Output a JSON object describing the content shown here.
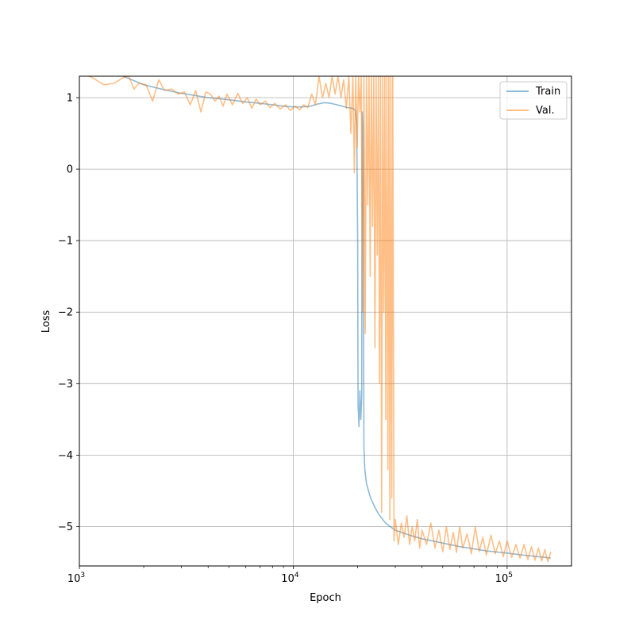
{
  "chart_data": {
    "type": "line",
    "title": "",
    "xlabel": "Epoch",
    "ylabel": "Loss",
    "xscale": "log",
    "xlim": [
      1000,
      200000
    ],
    "ylim": [
      -5.55,
      1.3
    ],
    "grid": true,
    "legend_position": "top-right",
    "x_ticks": [
      {
        "value": 1000,
        "base": "10",
        "exp": "3"
      },
      {
        "value": 10000,
        "base": "10",
        "exp": "4"
      },
      {
        "value": 100000,
        "base": "10",
        "exp": "5"
      }
    ],
    "y_ticks": [
      {
        "value": 1,
        "label": "1"
      },
      {
        "value": 0,
        "label": "0"
      },
      {
        "value": -1,
        "label": "−1"
      },
      {
        "value": -2,
        "label": "−2"
      },
      {
        "value": -3,
        "label": "−3"
      },
      {
        "value": -4,
        "label": "−4"
      },
      {
        "value": -5,
        "label": "−5"
      }
    ],
    "series": [
      {
        "name": "Train",
        "color": "#1f77b4",
        "points": [
          [
            1000,
            1.45
          ],
          [
            1300,
            1.38
          ],
          [
            1600,
            1.3
          ],
          [
            2000,
            1.18
          ],
          [
            2500,
            1.11
          ],
          [
            3000,
            1.06
          ],
          [
            4000,
            1.0
          ],
          [
            5000,
            0.97
          ],
          [
            6000,
            0.94
          ],
          [
            7000,
            0.92
          ],
          [
            8000,
            0.9
          ],
          [
            9000,
            0.88
          ],
          [
            10000,
            0.87
          ],
          [
            11000,
            0.87
          ],
          [
            12000,
            0.88
          ],
          [
            13000,
            0.91
          ],
          [
            14000,
            0.93
          ],
          [
            15000,
            0.92
          ],
          [
            16000,
            0.9
          ],
          [
            17000,
            0.88
          ],
          [
            18000,
            0.86
          ],
          [
            19000,
            0.85
          ],
          [
            19500,
            0.82
          ],
          [
            19800,
            0.65
          ],
          [
            20000,
            -1.0
          ],
          [
            20100,
            -3.3
          ],
          [
            20300,
            -3.6
          ],
          [
            20500,
            -3.1
          ],
          [
            20700,
            -3.5
          ],
          [
            20900,
            -3.2
          ],
          [
            21000,
            0.8
          ],
          [
            21200,
            0.6
          ],
          [
            21400,
            -3.9
          ],
          [
            21600,
            -4.2
          ],
          [
            22000,
            -4.4
          ],
          [
            23000,
            -4.6
          ],
          [
            24000,
            -4.72
          ],
          [
            25000,
            -4.82
          ],
          [
            27000,
            -4.95
          ],
          [
            30000,
            -5.05
          ],
          [
            35000,
            -5.12
          ],
          [
            40000,
            -5.17
          ],
          [
            50000,
            -5.23
          ],
          [
            60000,
            -5.28
          ],
          [
            70000,
            -5.31
          ],
          [
            80000,
            -5.34
          ],
          [
            100000,
            -5.37
          ],
          [
            120000,
            -5.4
          ],
          [
            140000,
            -5.42
          ],
          [
            160000,
            -5.44
          ]
        ]
      },
      {
        "name": "Val.",
        "color": "#ff7f0e",
        "points": [
          [
            1000,
            1.35
          ],
          [
            1150,
            1.28
          ],
          [
            1300,
            1.18
          ],
          [
            1450,
            1.2
          ],
          [
            1600,
            1.28
          ],
          [
            1700,
            1.3
          ],
          [
            1800,
            1.12
          ],
          [
            1900,
            1.2
          ],
          [
            2050,
            1.18
          ],
          [
            2200,
            0.95
          ],
          [
            2350,
            1.25
          ],
          [
            2500,
            1.1
          ],
          [
            2700,
            1.12
          ],
          [
            2900,
            1.05
          ],
          [
            3100,
            1.08
          ],
          [
            3300,
            0.9
          ],
          [
            3500,
            1.1
          ],
          [
            3700,
            0.8
          ],
          [
            3900,
            1.08
          ],
          [
            4100,
            1.05
          ],
          [
            4300,
            0.95
          ],
          [
            4500,
            1.02
          ],
          [
            4700,
            0.88
          ],
          [
            4900,
            1.05
          ],
          [
            5200,
            0.9
          ],
          [
            5500,
            1.06
          ],
          [
            5800,
            0.92
          ],
          [
            6100,
            1.0
          ],
          [
            6400,
            0.85
          ],
          [
            6700,
            0.98
          ],
          [
            7000,
            0.9
          ],
          [
            7400,
            0.95
          ],
          [
            7800,
            0.86
          ],
          [
            8200,
            0.92
          ],
          [
            8700,
            0.84
          ],
          [
            9200,
            0.9
          ],
          [
            9700,
            0.82
          ],
          [
            10200,
            0.88
          ],
          [
            10700,
            0.83
          ],
          [
            11200,
            0.9
          ],
          [
            11700,
            0.86
          ],
          [
            12200,
            1.05
          ],
          [
            12700,
            0.9
          ],
          [
            13200,
            1.3
          ],
          [
            13700,
            1.0
          ],
          [
            14200,
            1.2
          ],
          [
            14700,
            1.0
          ],
          [
            15200,
            1.3
          ],
          [
            15700,
            1.05
          ],
          [
            16200,
            1.3
          ],
          [
            16700,
            1.0
          ],
          [
            17200,
            1.25
          ],
          [
            17700,
            0.85
          ],
          [
            18200,
            1.3
          ],
          [
            18600,
            0.5
          ],
          [
            19000,
            1.3
          ],
          [
            19300,
            -0.05
          ],
          [
            19600,
            1.3
          ],
          [
            19900,
            0.3
          ],
          [
            20200,
            1.3
          ],
          [
            20500,
            0.8
          ],
          [
            20800,
            1.3
          ],
          [
            21100,
            -2.0
          ],
          [
            21400,
            1.3
          ],
          [
            21700,
            -2.3
          ],
          [
            22000,
            1.3
          ],
          [
            22300,
            -0.5
          ],
          [
            22600,
            1.3
          ],
          [
            22900,
            -1.5
          ],
          [
            23200,
            1.3
          ],
          [
            23500,
            -0.8
          ],
          [
            23800,
            1.3
          ],
          [
            24100,
            -2.5
          ],
          [
            24400,
            1.3
          ],
          [
            24700,
            -1.2
          ],
          [
            25000,
            1.3
          ],
          [
            25300,
            -3.0
          ],
          [
            25600,
            1.3
          ],
          [
            25900,
            -4.8
          ],
          [
            26200,
            1.3
          ],
          [
            26500,
            -2.0
          ],
          [
            26800,
            1.3
          ],
          [
            27100,
            -3.5
          ],
          [
            27400,
            1.3
          ],
          [
            27700,
            -4.2
          ],
          [
            28000,
            1.3
          ],
          [
            28300,
            -4.9
          ],
          [
            28600,
            1.3
          ],
          [
            28900,
            -4.6
          ],
          [
            29200,
            1.3
          ],
          [
            29600,
            -5.2
          ],
          [
            30000,
            -4.9
          ],
          [
            31000,
            -5.25
          ],
          [
            32000,
            -4.95
          ],
          [
            33000,
            -5.15
          ],
          [
            34000,
            -4.85
          ],
          [
            35000,
            -5.25
          ],
          [
            36000,
            -5.0
          ],
          [
            37000,
            -5.2
          ],
          [
            38000,
            -4.9
          ],
          [
            39000,
            -5.3
          ],
          [
            40000,
            -5.05
          ],
          [
            42000,
            -5.25
          ],
          [
            44000,
            -4.95
          ],
          [
            46000,
            -5.3
          ],
          [
            48000,
            -5.05
          ],
          [
            50000,
            -5.35
          ],
          [
            52000,
            -5.0
          ],
          [
            54000,
            -5.32
          ],
          [
            56000,
            -5.08
          ],
          [
            58000,
            -5.36
          ],
          [
            60000,
            -5.0
          ],
          [
            62000,
            -5.3
          ],
          [
            65000,
            -5.1
          ],
          [
            68000,
            -5.38
          ],
          [
            71000,
            -5.0
          ],
          [
            74000,
            -5.35
          ],
          [
            77000,
            -5.15
          ],
          [
            80000,
            -5.4
          ],
          [
            84000,
            -5.12
          ],
          [
            88000,
            -5.38
          ],
          [
            92000,
            -5.2
          ],
          [
            96000,
            -5.42
          ],
          [
            100000,
            -5.2
          ],
          [
            105000,
            -5.43
          ],
          [
            110000,
            -5.25
          ],
          [
            115000,
            -5.44
          ],
          [
            120000,
            -5.25
          ],
          [
            125000,
            -5.46
          ],
          [
            130000,
            -5.28
          ],
          [
            135000,
            -5.47
          ],
          [
            140000,
            -5.3
          ],
          [
            145000,
            -5.48
          ],
          [
            150000,
            -5.32
          ],
          [
            155000,
            -5.49
          ],
          [
            160000,
            -5.35
          ]
        ]
      }
    ]
  }
}
